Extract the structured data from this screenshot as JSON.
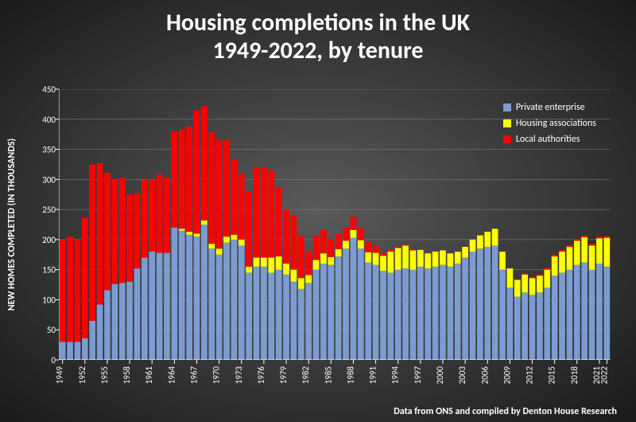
{
  "title_line1": "Housing completions in the UK",
  "title_line2": "1949-2022, by tenure",
  "title_fontsize": 30,
  "ylabel": "NEW HOMES COMPLETED (IN THOUSANDS)",
  "footer": "Data from ONS and compiled by Denton House Research",
  "chart": {
    "type": "stacked-bar",
    "ylim": [
      0,
      450
    ],
    "ytick_step": 50,
    "background": "transparent",
    "grid_color": "#888888",
    "bar_gap": 0.18,
    "xtick_step": 3,
    "series": [
      {
        "name": "Private enterprise",
        "color": "#7b9bd1",
        "legend_order": 0
      },
      {
        "name": "Housing associations",
        "color": "#ffff00",
        "legend_order": 1
      },
      {
        "name": "Local authorities",
        "color": "#ff0000",
        "legend_order": 2
      }
    ],
    "years": [
      1949,
      1950,
      1951,
      1952,
      1953,
      1954,
      1955,
      1956,
      1957,
      1958,
      1959,
      1960,
      1961,
      1962,
      1963,
      1964,
      1965,
      1966,
      1967,
      1968,
      1969,
      1970,
      1971,
      1972,
      1973,
      1974,
      1975,
      1976,
      1977,
      1978,
      1979,
      1980,
      1981,
      1982,
      1983,
      1984,
      1985,
      1986,
      1987,
      1988,
      1989,
      1990,
      1991,
      1992,
      1993,
      1994,
      1995,
      1996,
      1997,
      1998,
      1999,
      2000,
      2001,
      2002,
      2003,
      2004,
      2005,
      2006,
      2007,
      2008,
      2009,
      2010,
      2011,
      2012,
      2013,
      2014,
      2015,
      2016,
      2017,
      2018,
      2019,
      2020,
      2021,
      2022
    ],
    "private": [
      30,
      30,
      30,
      36,
      65,
      92,
      116,
      126,
      128,
      130,
      152,
      170,
      180,
      178,
      178,
      220,
      215,
      208,
      205,
      225,
      185,
      175,
      195,
      200,
      190,
      145,
      155,
      155,
      145,
      150,
      142,
      130,
      118,
      128,
      150,
      160,
      158,
      172,
      185,
      203,
      185,
      162,
      158,
      148,
      145,
      150,
      152,
      150,
      155,
      152,
      155,
      158,
      155,
      160,
      170,
      180,
      185,
      188,
      190,
      150,
      120,
      105,
      112,
      108,
      112,
      120,
      140,
      145,
      150,
      158,
      162,
      150,
      160,
      155
    ],
    "housing_assoc": [
      0,
      0,
      0,
      0,
      0,
      0,
      0,
      0,
      0,
      0,
      0,
      0,
      0,
      0,
      0,
      0,
      3,
      5,
      5,
      7,
      8,
      10,
      10,
      8,
      10,
      10,
      15,
      15,
      25,
      22,
      18,
      20,
      18,
      13,
      16,
      17,
      13,
      12,
      13,
      13,
      14,
      17,
      20,
      25,
      35,
      36,
      38,
      32,
      28,
      25,
      25,
      24,
      22,
      20,
      18,
      20,
      22,
      25,
      28,
      30,
      32,
      28,
      30,
      28,
      28,
      30,
      32,
      35,
      38,
      40,
      42,
      40,
      42,
      48
    ],
    "local_auth": [
      170,
      175,
      170,
      200,
      260,
      235,
      195,
      175,
      175,
      145,
      125,
      130,
      120,
      130,
      125,
      160,
      165,
      175,
      205,
      190,
      185,
      180,
      160,
      125,
      110,
      125,
      150,
      150,
      145,
      115,
      90,
      90,
      70,
      40,
      40,
      40,
      30,
      25,
      22,
      22,
      20,
      18,
      12,
      5,
      3,
      2,
      2,
      1,
      1,
      0,
      0,
      0,
      0,
      0,
      0,
      0,
      0,
      0,
      0,
      0,
      0,
      0,
      2,
      2,
      2,
      3,
      3,
      3,
      3,
      3,
      3,
      3,
      3,
      3
    ]
  }
}
